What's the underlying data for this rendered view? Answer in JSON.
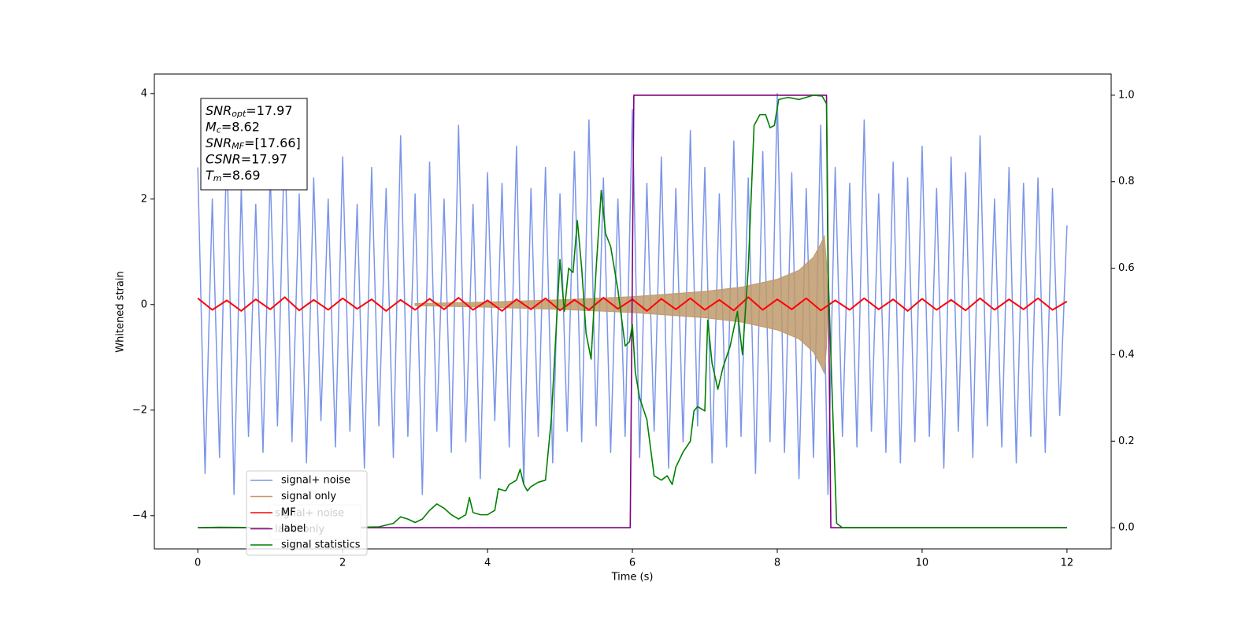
{
  "chart_data": {
    "type": "line",
    "xlabel": "Time (s)",
    "ylabel": "Whitened strain",
    "xlim": [
      -0.6,
      12.61
    ],
    "xticks": [
      0,
      2,
      4,
      6,
      8,
      10,
      12
    ],
    "ylim": [
      -4.63,
      4.37
    ],
    "yticks": [
      {
        "value": -4,
        "label": "−4"
      },
      {
        "value": -2,
        "label": "−2"
      },
      0,
      2,
      4
    ],
    "y2lim": [
      -0.049,
      1.049
    ],
    "y2ticks": [
      {
        "value": 0,
        "label": "0.0"
      },
      0.2,
      0.4,
      0.6,
      0.8,
      {
        "value": 1,
        "label": "1.0"
      }
    ],
    "annotations": [
      {
        "main": "SNR",
        "sub": "opt",
        "rest": "=17.97"
      },
      {
        "main": "M",
        "sub": "c",
        "rest": "=8.62"
      },
      {
        "main": "SNR",
        "sub": "MF",
        "rest": "=[17.66]"
      },
      {
        "main": "CSNR",
        "rest": "=17.97"
      },
      {
        "main": "T",
        "sub": "m",
        "rest": "=8.69"
      }
    ],
    "legend_secondary": [
      "signal+ noise",
      "label only"
    ],
    "series": [
      {
        "name": "signal+ noise",
        "color": "#7b95e8",
        "x": [
          0,
          0.1,
          0.2,
          0.3,
          0.4,
          0.5,
          0.6,
          0.7,
          0.8,
          0.9,
          1,
          1.1,
          1.2,
          1.3,
          1.4,
          1.5,
          1.6,
          1.7,
          1.8,
          1.9,
          2,
          2.1,
          2.2,
          2.3,
          2.4,
          2.5,
          2.6,
          2.7,
          2.8,
          2.9,
          3,
          3.1,
          3.2,
          3.3,
          3.4,
          3.5,
          3.6,
          3.7,
          3.8,
          3.9,
          4,
          4.1,
          4.2,
          4.3,
          4.4,
          4.5,
          4.6,
          4.7,
          4.8,
          4.9,
          5,
          5.1,
          5.2,
          5.3,
          5.4,
          5.5,
          5.6,
          5.7,
          5.8,
          5.9,
          6,
          6.1,
          6.2,
          6.3,
          6.4,
          6.5,
          6.6,
          6.7,
          6.8,
          6.9,
          7,
          7.1,
          7.2,
          7.3,
          7.4,
          7.5,
          7.6,
          7.7,
          7.8,
          7.9,
          8,
          8.1,
          8.2,
          8.3,
          8.4,
          8.5,
          8.6,
          8.7,
          8.8,
          8.9,
          9,
          9.1,
          9.2,
          9.3,
          9.4,
          9.5,
          9.6,
          9.7,
          9.8,
          9.9,
          10,
          10.1,
          10.2,
          10.3,
          10.4,
          10.5,
          10.6,
          10.7,
          10.8,
          10.9,
          11,
          11.1,
          11.2,
          11.3,
          11.4,
          11.5,
          11.6,
          11.7,
          11.8,
          11.9,
          12
        ],
        "values": [
          2.6,
          -3.2,
          2.0,
          -2.9,
          3.1,
          -3.6,
          2.2,
          -2.5,
          1.9,
          -2.8,
          2.5,
          -2.3,
          3.3,
          -2.6,
          2.1,
          -3.0,
          2.4,
          -2.2,
          2.0,
          -2.7,
          2.8,
          -2.4,
          1.9,
          -3.1,
          2.6,
          -2.3,
          2.2,
          -2.9,
          3.2,
          -2.5,
          2.1,
          -3.6,
          2.7,
          -2.4,
          2.0,
          -2.8,
          3.4,
          -2.6,
          1.9,
          -3.3,
          2.5,
          -2.2,
          2.3,
          -2.7,
          3.0,
          -3.4,
          2.2,
          -2.5,
          2.6,
          -3.0,
          2.1,
          -2.4,
          2.9,
          -2.6,
          3.5,
          -2.3,
          2.4,
          -2.8,
          2.0,
          -2.5,
          3.7,
          -2.9,
          2.3,
          -2.4,
          2.8,
          -3.1,
          2.2,
          -2.6,
          3.3,
          -2.3,
          2.6,
          -3.0,
          2.1,
          -2.7,
          3.1,
          -2.5,
          2.4,
          -3.2,
          2.9,
          -2.6,
          4.0,
          -2.8,
          2.5,
          -3.3,
          2.2,
          -2.9,
          3.4,
          -3.6,
          2.6,
          -2.5,
          2.3,
          -2.7,
          3.5,
          -2.4,
          2.1,
          -2.8,
          2.7,
          -3.0,
          2.4,
          -2.6,
          3.0,
          -2.5,
          2.2,
          -3.1,
          2.8,
          -2.4,
          2.5,
          -2.9,
          3.2,
          -2.3,
          2.0,
          -2.7,
          2.6,
          -3.0,
          2.3,
          -2.5,
          2.4,
          -2.8,
          2.2,
          -2.1,
          1.5
        ]
      },
      {
        "name": "signal only",
        "color": "#c09a6b",
        "style": "envelope",
        "x": [
          3,
          4,
          5,
          6,
          7,
          7.5,
          8,
          8.3,
          8.5,
          8.6,
          8.65,
          8.68,
          8.7
        ],
        "values": [
          0.02,
          0.05,
          0.09,
          0.15,
          0.25,
          0.33,
          0.48,
          0.65,
          0.9,
          1.15,
          1.3,
          0.8,
          0
        ]
      },
      {
        "name": "MF",
        "color": "#ff0000",
        "x": [
          0,
          0.2,
          0.4,
          0.6,
          0.8,
          1,
          1.2,
          1.4,
          1.6,
          1.8,
          2,
          2.2,
          2.4,
          2.6,
          2.8,
          3,
          3.2,
          3.4,
          3.6,
          3.8,
          4,
          4.2,
          4.4,
          4.6,
          4.8,
          5,
          5.2,
          5.4,
          5.6,
          5.8,
          6,
          6.2,
          6.4,
          6.6,
          6.8,
          7,
          7.2,
          7.4,
          7.6,
          7.8,
          8,
          8.2,
          8.4,
          8.6,
          8.8,
          9,
          9.2,
          9.4,
          9.6,
          9.8,
          10,
          10.2,
          10.4,
          10.6,
          10.8,
          11,
          11.2,
          11.4,
          11.6,
          11.8,
          12
        ],
        "values": [
          0.12,
          -0.1,
          0.08,
          -0.12,
          0.1,
          -0.09,
          0.14,
          -0.11,
          0.09,
          -0.1,
          0.12,
          -0.08,
          0.1,
          -0.12,
          0.09,
          -0.1,
          0.11,
          -0.09,
          0.13,
          -0.1,
          0.08,
          -0.12,
          0.1,
          -0.09,
          0.12,
          -0.11,
          0.09,
          -0.1,
          0.13,
          -0.08,
          0.1,
          -0.12,
          0.11,
          -0.09,
          0.12,
          -0.1,
          0.09,
          -0.11,
          0.14,
          -0.1,
          0.1,
          -0.09,
          0.12,
          -0.11,
          0.08,
          -0.1,
          0.12,
          -0.09,
          0.1,
          -0.12,
          0.11,
          -0.1,
          0.09,
          -0.11,
          0.12,
          -0.1,
          0.1,
          -0.09,
          0.12,
          -0.1,
          0.06
        ]
      },
      {
        "name": "label",
        "color": "#800080",
        "axis": "y2",
        "x": [
          0,
          5.97,
          6.02,
          8.68,
          8.74,
          12
        ],
        "values": [
          0,
          0,
          1,
          1,
          0,
          0
        ]
      },
      {
        "name": "signal statistics",
        "color": "#008000",
        "axis": "y2",
        "x": [
          0,
          0.3,
          1,
          2,
          2.5,
          2.7,
          2.8,
          2.9,
          3.0,
          3.1,
          3.2,
          3.3,
          3.4,
          3.5,
          3.6,
          3.7,
          3.75,
          3.8,
          3.9,
          4.0,
          4.1,
          4.15,
          4.25,
          4.3,
          4.4,
          4.45,
          4.5,
          4.55,
          4.6,
          4.7,
          4.8,
          4.88,
          5.0,
          5.06,
          5.12,
          5.18,
          5.24,
          5.3,
          5.36,
          5.43,
          5.5,
          5.57,
          5.63,
          5.7,
          5.8,
          5.9,
          5.96,
          6.0,
          6.04,
          6.1,
          6.2,
          6.3,
          6.4,
          6.48,
          6.55,
          6.6,
          6.7,
          6.8,
          6.85,
          6.9,
          7.0,
          7.04,
          7.1,
          7.18,
          7.25,
          7.35,
          7.45,
          7.52,
          7.6,
          7.68,
          7.76,
          7.84,
          7.9,
          7.96,
          8.02,
          8.15,
          8.3,
          8.4,
          8.5,
          8.62,
          8.68,
          8.7,
          8.76,
          8.82,
          8.9,
          10,
          12
        ],
        "values": [
          0,
          0.001,
          0,
          0,
          0.002,
          0.01,
          0.025,
          0.02,
          0.012,
          0.02,
          0.04,
          0.055,
          0.045,
          0.03,
          0.02,
          0.03,
          0.07,
          0.035,
          0.03,
          0.03,
          0.04,
          0.09,
          0.085,
          0.1,
          0.11,
          0.135,
          0.1,
          0.085,
          0.095,
          0.105,
          0.11,
          0.25,
          0.62,
          0.5,
          0.6,
          0.59,
          0.71,
          0.6,
          0.45,
          0.39,
          0.6,
          0.78,
          0.68,
          0.65,
          0.55,
          0.42,
          0.43,
          0.47,
          0.36,
          0.3,
          0.25,
          0.12,
          0.11,
          0.12,
          0.1,
          0.14,
          0.175,
          0.2,
          0.27,
          0.28,
          0.27,
          0.48,
          0.38,
          0.32,
          0.37,
          0.42,
          0.5,
          0.4,
          0.6,
          0.93,
          0.955,
          0.955,
          0.925,
          0.93,
          0.99,
          0.995,
          0.99,
          0.995,
          1.0,
          0.998,
          0.98,
          0.6,
          0.3,
          0.01,
          0,
          0,
          0
        ]
      }
    ]
  }
}
